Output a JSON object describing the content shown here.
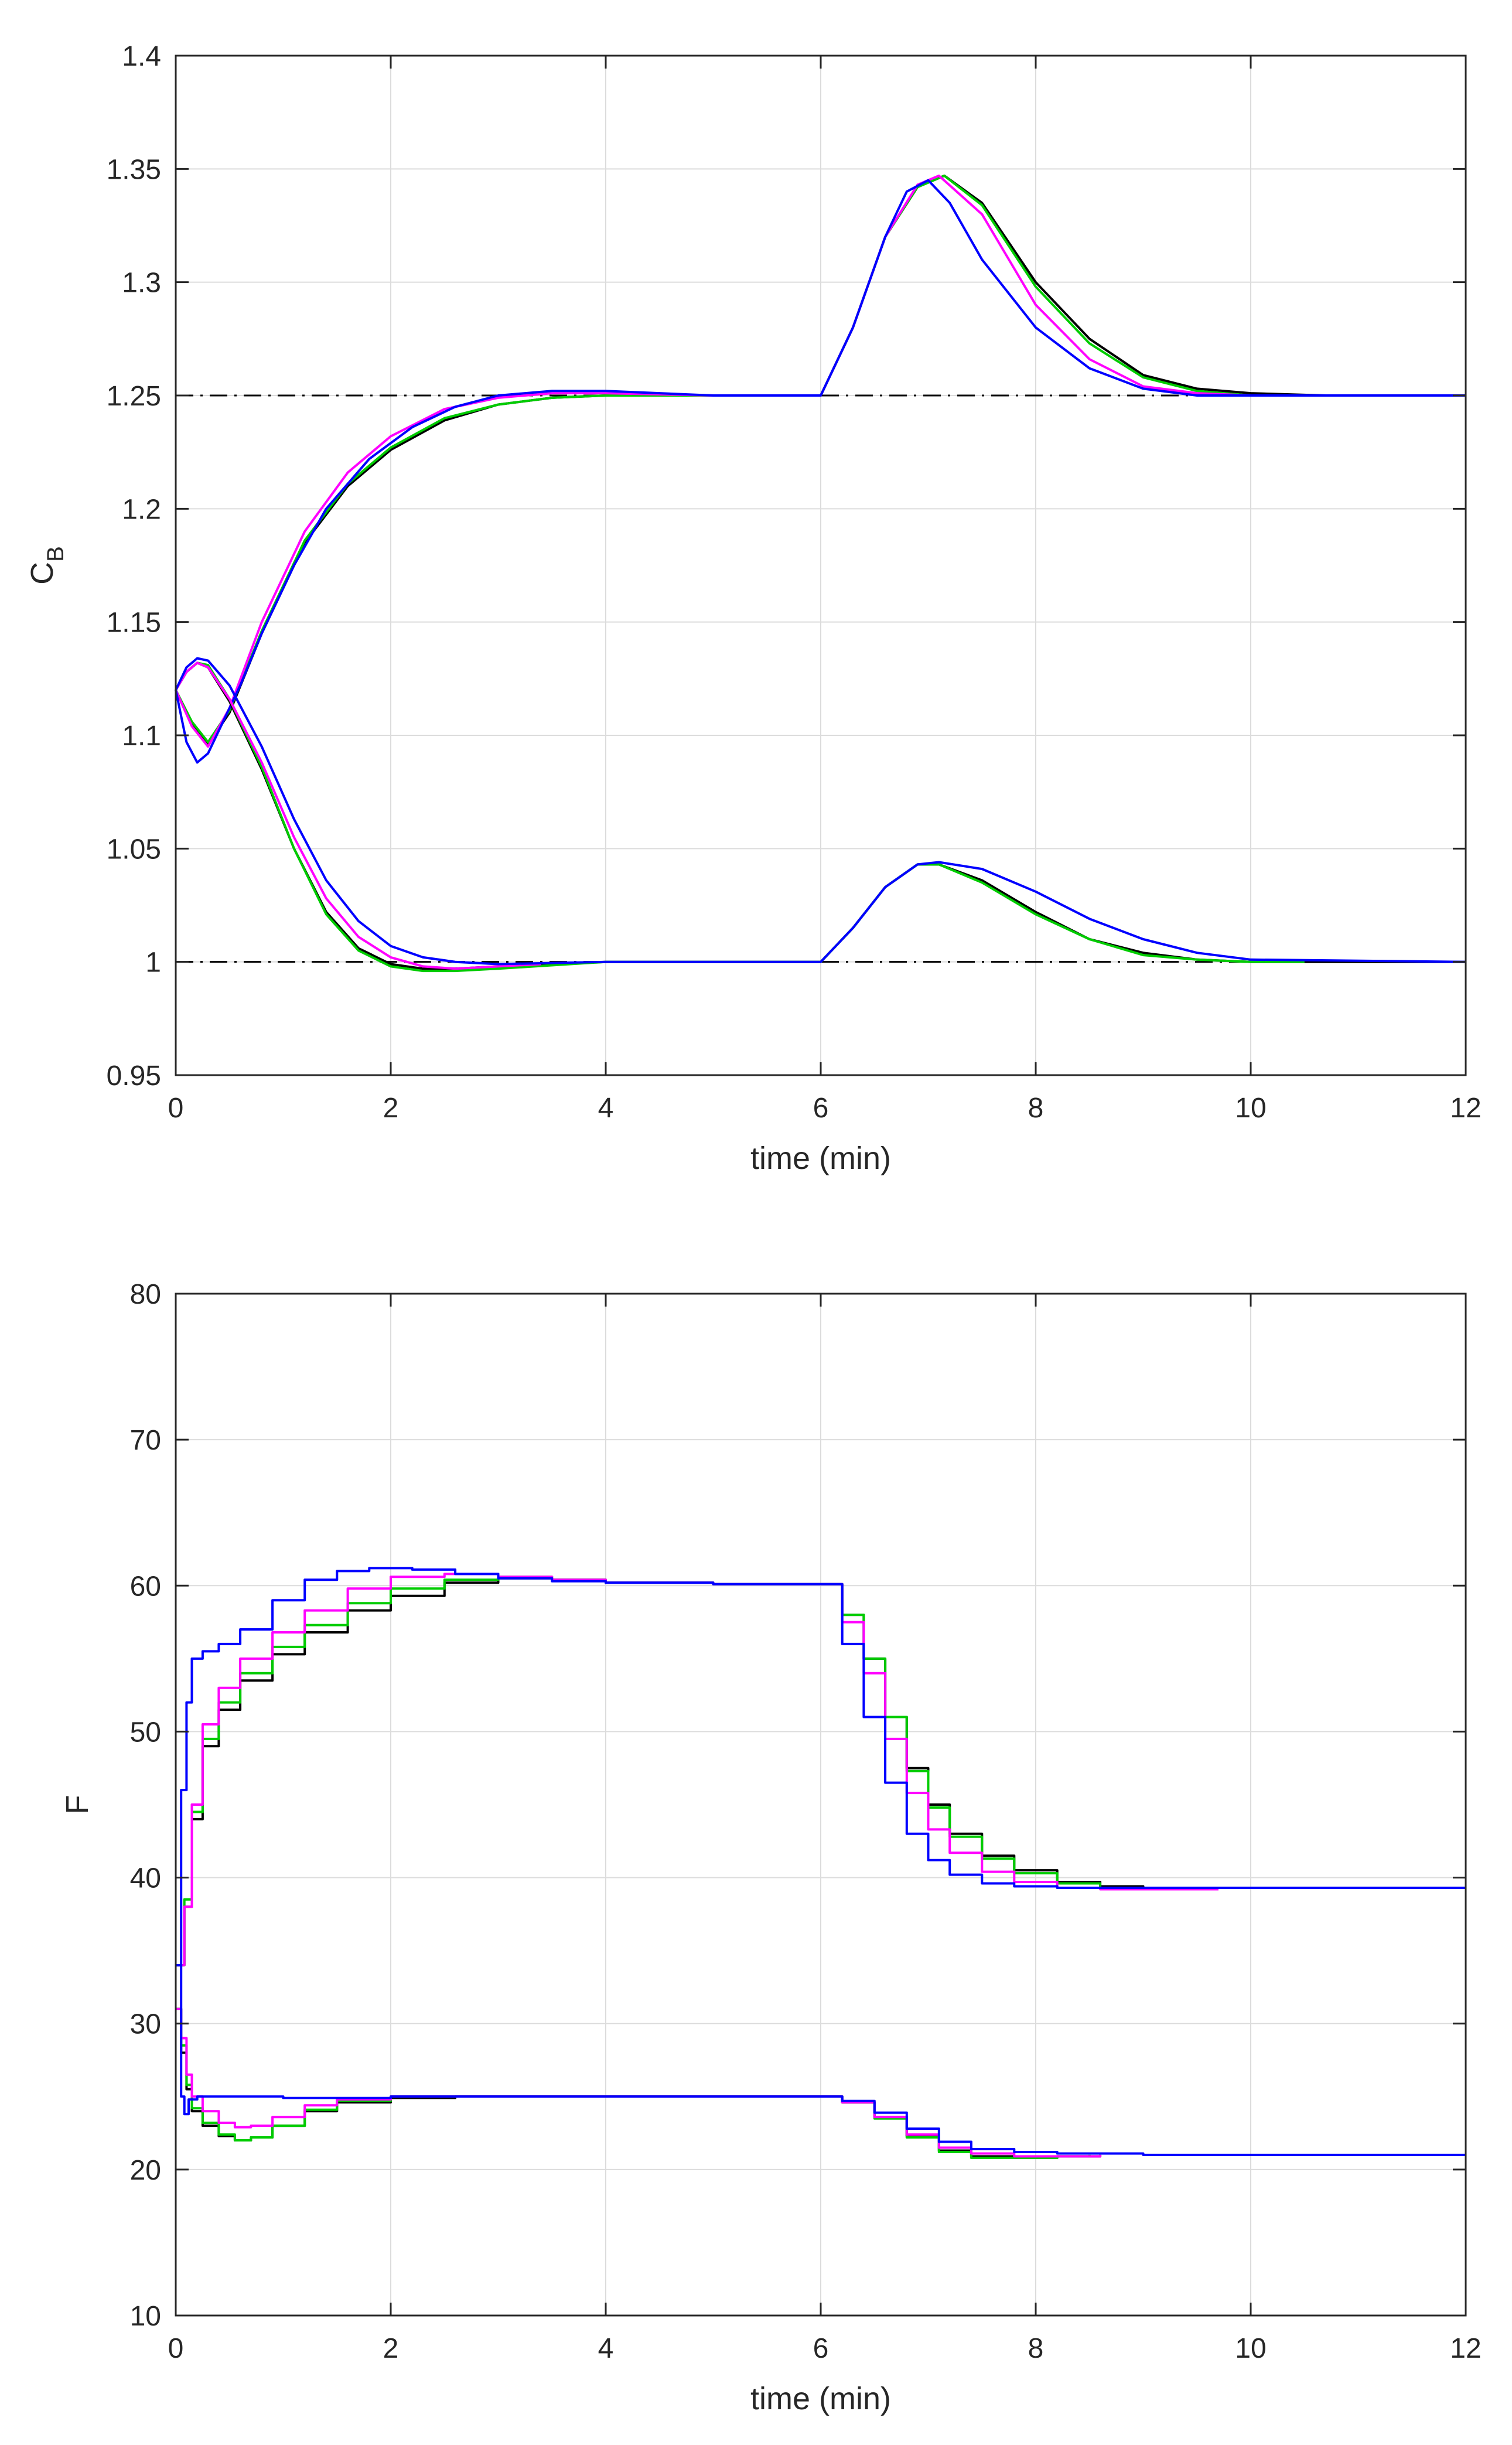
{
  "chart_data": [
    {
      "type": "line",
      "xlabel": "time (min)",
      "ylabel": "C",
      "ylabel_subscript": "B",
      "xlim": [
        0,
        12
      ],
      "ylim": [
        0.95,
        1.4
      ],
      "grid": true,
      "xticks": [
        0,
        2,
        4,
        6,
        8,
        10,
        12
      ],
      "xtick_labels": [
        "0",
        "2",
        "4",
        "6",
        "8",
        "10",
        "12"
      ],
      "yticks": [
        0.95,
        1,
        1.05,
        1.1,
        1.15,
        1.2,
        1.25,
        1.3,
        1.35,
        1.4
      ],
      "ytick_labels": [
        "0.95",
        "1",
        "1.05",
        "1.1",
        "1.15",
        "1.2",
        "1.25",
        "1.3",
        "1.35",
        "1.4"
      ],
      "reference_lines": [
        {
          "name": "setpoint-high",
          "y": 1.25,
          "style": "dashdot",
          "color": "#000000"
        },
        {
          "name": "setpoint-low",
          "y": 1.0,
          "style": "dashdot",
          "color": "#000000"
        }
      ],
      "series": [
        {
          "name": "black-upper",
          "color": "#000000",
          "x": [
            0,
            0.15,
            0.3,
            0.5,
            0.8,
            1.2,
            1.6,
            2,
            2.5,
            3,
            3.5,
            4,
            5,
            6,
            6.3,
            6.6,
            6.9,
            7.15,
            7.5,
            8,
            8.5,
            9,
            9.5,
            10,
            10.7
          ],
          "y": [
            1.12,
            1.105,
            1.096,
            1.11,
            1.145,
            1.185,
            1.21,
            1.226,
            1.239,
            1.246,
            1.249,
            1.25,
            1.25,
            1.25,
            1.28,
            1.32,
            1.342,
            1.347,
            1.335,
            1.3,
            1.275,
            1.259,
            1.253,
            1.251,
            1.25
          ]
        },
        {
          "name": "green-upper",
          "color": "#00cc00",
          "x": [
            0,
            0.15,
            0.3,
            0.5,
            0.8,
            1.2,
            1.6,
            2,
            2.5,
            3,
            3.5,
            4,
            5,
            6,
            6.3,
            6.6,
            6.9,
            7.15,
            7.5,
            8,
            8.5,
            9,
            9.5,
            10,
            10.6
          ],
          "y": [
            1.12,
            1.106,
            1.097,
            1.111,
            1.146,
            1.186,
            1.211,
            1.227,
            1.24,
            1.246,
            1.249,
            1.25,
            1.25,
            1.25,
            1.28,
            1.32,
            1.342,
            1.347,
            1.334,
            1.298,
            1.273,
            1.258,
            1.252,
            1.25,
            1.25
          ]
        },
        {
          "name": "magenta-upper",
          "color": "#ff00ff",
          "x": [
            0,
            0.15,
            0.3,
            0.5,
            0.8,
            1.2,
            1.6,
            2,
            2.5,
            3,
            3.5,
            4,
            5,
            5.4,
            6,
            6.3,
            6.6,
            6.9,
            7.1,
            7.5,
            8,
            8.5,
            9,
            9.5,
            10
          ],
          "y": [
            1.12,
            1.104,
            1.095,
            1.112,
            1.15,
            1.19,
            1.216,
            1.232,
            1.244,
            1.249,
            1.251,
            1.251,
            1.25,
            1.25,
            1.25,
            1.28,
            1.32,
            1.343,
            1.347,
            1.33,
            1.29,
            1.266,
            1.254,
            1.251,
            1.25
          ]
        },
        {
          "name": "blue-upper",
          "color": "#0000ff",
          "x": [
            0,
            0.1,
            0.2,
            0.3,
            0.45,
            0.6,
            0.8,
            1.1,
            1.4,
            1.8,
            2.2,
            2.6,
            3,
            3.5,
            4,
            5,
            6,
            6.3,
            6.6,
            6.8,
            7,
            7.2,
            7.5,
            8,
            8.5,
            9,
            9.5,
            10,
            12
          ],
          "y": [
            1.12,
            1.097,
            1.088,
            1.092,
            1.107,
            1.122,
            1.145,
            1.175,
            1.2,
            1.222,
            1.236,
            1.245,
            1.25,
            1.252,
            1.252,
            1.25,
            1.25,
            1.28,
            1.32,
            1.34,
            1.345,
            1.335,
            1.31,
            1.28,
            1.262,
            1.253,
            1.25,
            1.25,
            1.25
          ]
        },
        {
          "name": "black-lower",
          "color": "#000000",
          "x": [
            0,
            0.1,
            0.2,
            0.3,
            0.5,
            0.8,
            1.1,
            1.4,
            1.7,
            2,
            2.3,
            2.6,
            3,
            4,
            5,
            6,
            6.3,
            6.6,
            6.9,
            7.1,
            7.5,
            8,
            8.5,
            9,
            9.5,
            10,
            10.5,
            11,
            12
          ],
          "y": [
            1.12,
            1.128,
            1.132,
            1.13,
            1.115,
            1.085,
            1.05,
            1.022,
            1.006,
            0.999,
            0.997,
            0.997,
            0.998,
            1.0,
            1.0,
            1.0,
            1.015,
            1.033,
            1.043,
            1.043,
            1.036,
            1.022,
            1.01,
            1.004,
            1.001,
            1.0,
            1.0,
            1.0,
            1.0
          ]
        },
        {
          "name": "green-lower",
          "color": "#00cc00",
          "x": [
            0,
            0.1,
            0.2,
            0.3,
            0.5,
            0.8,
            1.1,
            1.4,
            1.7,
            2,
            2.3,
            2.6,
            3,
            4,
            5,
            6,
            6.3,
            6.6,
            6.9,
            7.1,
            7.5,
            8,
            8.5,
            9,
            9.5,
            10,
            10.5
          ],
          "y": [
            1.12,
            1.128,
            1.132,
            1.131,
            1.116,
            1.086,
            1.05,
            1.021,
            1.005,
            0.998,
            0.996,
            0.996,
            0.997,
            1.0,
            1.0,
            1.0,
            1.015,
            1.033,
            1.043,
            1.043,
            1.035,
            1.021,
            1.01,
            1.003,
            1.001,
            1.0,
            1.0
          ]
        },
        {
          "name": "magenta-lower",
          "color": "#ff00ff",
          "x": [
            0,
            0.1,
            0.2,
            0.3,
            0.5,
            0.8,
            1.1,
            1.4,
            1.7,
            2,
            2.3,
            2.6,
            3,
            3.4
          ],
          "y": [
            1.12,
            1.128,
            1.132,
            1.13,
            1.116,
            1.088,
            1.055,
            1.028,
            1.011,
            1.002,
            0.998,
            0.997,
            0.998,
            0.999
          ]
        },
        {
          "name": "blue-lower",
          "color": "#0000ff",
          "x": [
            0,
            0.1,
            0.2,
            0.3,
            0.5,
            0.8,
            1.1,
            1.4,
            1.7,
            2,
            2.3,
            2.6,
            3,
            4,
            5,
            5.7,
            6,
            6.3,
            6.6,
            6.9,
            7.1,
            7.5,
            8,
            8.5,
            9,
            9.5,
            10,
            12
          ],
          "y": [
            1.12,
            1.13,
            1.134,
            1.133,
            1.122,
            1.095,
            1.063,
            1.036,
            1.018,
            1.007,
            1.002,
            1.0,
            0.999,
            1.0,
            1.0,
            1.0,
            1.0,
            1.015,
            1.033,
            1.043,
            1.044,
            1.041,
            1.031,
            1.019,
            1.01,
            1.004,
            1.001,
            1.0
          ]
        }
      ]
    },
    {
      "type": "line",
      "xlabel": "time (min)",
      "ylabel": "F",
      "xlim": [
        0,
        12
      ],
      "ylim": [
        10,
        80
      ],
      "grid": true,
      "xticks": [
        0,
        2,
        4,
        6,
        8,
        10,
        12
      ],
      "xtick_labels": [
        "0",
        "2",
        "4",
        "6",
        "8",
        "10",
        "12"
      ],
      "yticks": [
        10,
        20,
        30,
        40,
        50,
        60,
        70,
        80
      ],
      "ytick_labels": [
        "10",
        "20",
        "30",
        "40",
        "50",
        "60",
        "70",
        "80"
      ],
      "step": true,
      "series": [
        {
          "name": "black-upper",
          "color": "#000000",
          "x": [
            0,
            0.08,
            0.15,
            0.25,
            0.4,
            0.6,
            0.9,
            1.2,
            1.6,
            2,
            2.5,
            3,
            3.5,
            4,
            5,
            6,
            6.2,
            6.4,
            6.6,
            6.8,
            7,
            7.2,
            7.5,
            7.8,
            8.2,
            8.6,
            9,
            10,
            12
          ],
          "y": [
            34,
            38,
            44,
            49,
            51.5,
            53.5,
            55.3,
            56.8,
            58.3,
            59.3,
            60.2,
            60.5,
            60.4,
            60.2,
            60.1,
            60.1,
            58,
            55,
            51,
            47.5,
            45,
            43,
            41.5,
            40.5,
            39.7,
            39.4,
            39.3,
            39.3,
            39.3
          ]
        },
        {
          "name": "green-upper",
          "color": "#00cc00",
          "x": [
            0,
            0.08,
            0.15,
            0.25,
            0.4,
            0.6,
            0.9,
            1.2,
            1.6,
            2,
            2.5,
            3,
            3.5,
            4,
            5,
            6,
            6.2,
            6.4,
            6.6,
            6.8,
            7,
            7.2,
            7.5,
            7.8,
            8.2,
            8.6,
            9,
            9.5
          ],
          "y": [
            34,
            38.5,
            44.5,
            49.5,
            52,
            54,
            55.8,
            57.3,
            58.8,
            59.8,
            60.4,
            60.6,
            60.4,
            60.2,
            60.1,
            60.1,
            58,
            55,
            51,
            47.3,
            44.8,
            42.8,
            41.3,
            40.3,
            39.6,
            39.3,
            39.2,
            39.2
          ]
        },
        {
          "name": "magenta-upper",
          "color": "#ff00ff",
          "x": [
            0,
            0.08,
            0.15,
            0.25,
            0.4,
            0.6,
            0.9,
            1.2,
            1.6,
            2,
            2.5,
            3,
            3.5,
            4,
            5,
            6,
            6.2,
            6.4,
            6.6,
            6.8,
            7,
            7.2,
            7.5,
            7.8,
            8.2,
            8.6,
            9,
            9.7
          ],
          "y": [
            34,
            38,
            45,
            50.5,
            53,
            55,
            56.8,
            58.3,
            59.8,
            60.6,
            60.8,
            60.6,
            60.4,
            60.2,
            60.1,
            60.1,
            57.5,
            54,
            49.5,
            45.8,
            43.3,
            41.7,
            40.4,
            39.7,
            39.3,
            39.2,
            39.2,
            39.2
          ]
        },
        {
          "name": "blue-upper",
          "color": "#0000ff",
          "x": [
            0,
            0.05,
            0.1,
            0.15,
            0.25,
            0.4,
            0.6,
            0.9,
            1.2,
            1.5,
            1.8,
            2.2,
            2.6,
            3,
            3.5,
            4,
            5,
            6,
            6.2,
            6.4,
            6.6,
            6.8,
            7,
            7.2,
            7.5,
            7.8,
            8.2,
            8.6,
            9,
            10,
            12
          ],
          "y": [
            34,
            46,
            52,
            55,
            55.5,
            56,
            57,
            59,
            60.4,
            61,
            61.2,
            61.1,
            60.8,
            60.5,
            60.3,
            60.2,
            60.1,
            60.1,
            56,
            51,
            46.5,
            43,
            41.2,
            40.2,
            39.6,
            39.4,
            39.3,
            39.3,
            39.3,
            39.3,
            39.3
          ]
        },
        {
          "name": "black-lower",
          "color": "#000000",
          "x": [
            0,
            0.05,
            0.1,
            0.15,
            0.25,
            0.4,
            0.55,
            0.7,
            0.9,
            1.2,
            1.5,
            2,
            2.6,
            3,
            4,
            5,
            6,
            6.2,
            6.5,
            6.8,
            7.1,
            7.4,
            7.8,
            8.2,
            8.6
          ],
          "y": [
            31,
            28,
            25.5,
            24,
            23,
            22.3,
            22,
            22.2,
            23,
            24,
            24.6,
            24.9,
            25,
            25,
            25,
            25,
            25,
            24.6,
            23.6,
            22.3,
            21.3,
            20.9,
            20.8,
            20.9,
            21
          ]
        },
        {
          "name": "green-lower",
          "color": "#00cc00",
          "x": [
            0,
            0.05,
            0.1,
            0.15,
            0.25,
            0.4,
            0.55,
            0.7,
            0.9,
            1.2,
            1.5,
            2,
            2.6,
            3,
            4,
            5,
            6,
            6.2,
            6.5,
            6.8,
            7.1,
            7.4,
            7.8,
            8.2,
            8.5
          ],
          "y": [
            31,
            28.5,
            25.8,
            24.2,
            23.2,
            22.4,
            22,
            22.2,
            23,
            24.1,
            24.7,
            25,
            25,
            25,
            25,
            25,
            25,
            24.6,
            23.5,
            22.2,
            21.2,
            20.8,
            20.8,
            20.9,
            21
          ]
        },
        {
          "name": "magenta-lower",
          "color": "#ff00ff",
          "x": [
            0,
            0.05,
            0.1,
            0.15,
            0.25,
            0.4,
            0.55,
            0.7,
            0.9,
            1.2,
            1.5,
            2,
            2.6,
            3,
            4,
            5,
            6,
            6.2,
            6.5,
            6.8,
            7.1,
            7.4,
            7.8,
            8.2,
            8.6
          ],
          "y": [
            31,
            29,
            26.5,
            25,
            24,
            23.2,
            22.9,
            23,
            23.6,
            24.4,
            24.8,
            25,
            25,
            25,
            25,
            25,
            25,
            24.6,
            23.6,
            22.4,
            21.5,
            21.1,
            20.9,
            20.9,
            21
          ]
        },
        {
          "name": "blue-lower",
          "color": "#0000ff",
          "x": [
            0,
            0.05,
            0.08,
            0.12,
            0.2,
            0.5,
            1,
            2,
            3,
            4,
            5,
            6,
            6.2,
            6.5,
            6.8,
            7.1,
            7.4,
            7.8,
            8.2,
            9,
            10,
            12
          ],
          "y": [
            34,
            25,
            23.8,
            24.8,
            25,
            25,
            24.9,
            25,
            25,
            25,
            25,
            25,
            24.7,
            23.9,
            22.8,
            21.9,
            21.4,
            21.2,
            21.1,
            21,
            21,
            21
          ]
        }
      ]
    }
  ]
}
